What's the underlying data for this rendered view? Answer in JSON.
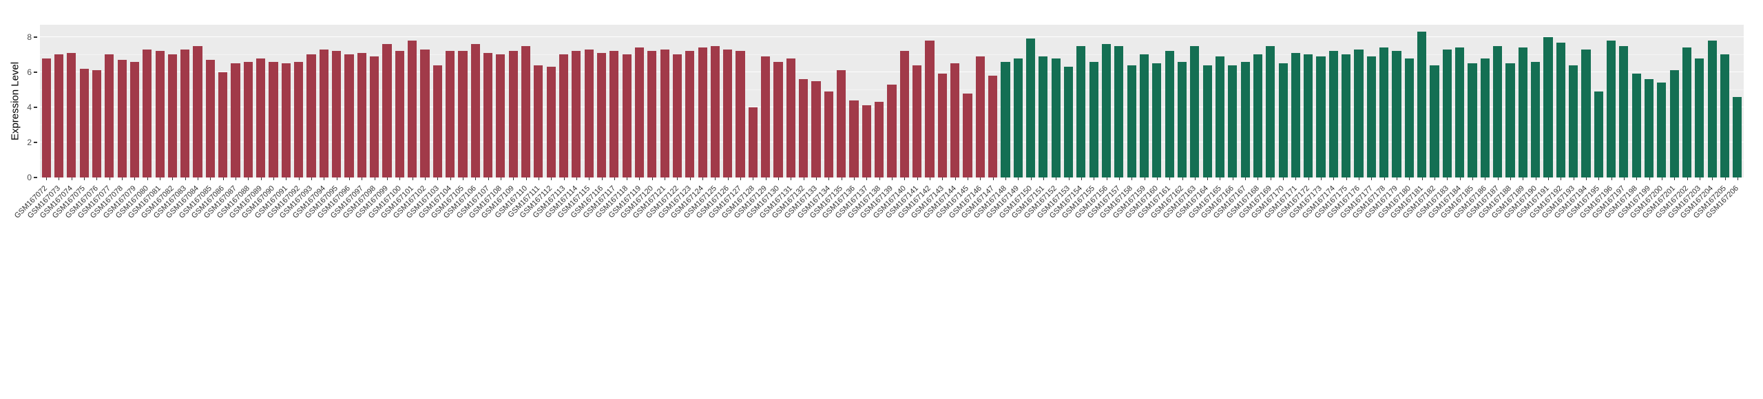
{
  "chart_data": {
    "type": "bar",
    "title": "",
    "xlabel": "",
    "ylabel": "Expression Level",
    "ylim": [
      0,
      8.7
    ],
    "yticks": [
      0,
      2,
      4,
      6,
      8
    ],
    "grid": "white-major-minor",
    "legend_position": "none",
    "panel_background": "#EBEBEB",
    "colors": {
      "group1": "#A13A49",
      "group2": "#146F53"
    },
    "group_split_index": 76,
    "categories": [
      "GSM167072",
      "GSM167073",
      "GSM167074",
      "GSM167075",
      "GSM167076",
      "GSM167077",
      "GSM167078",
      "GSM167079",
      "GSM167080",
      "GSM167081",
      "GSM167082",
      "GSM167083",
      "GSM167084",
      "GSM167085",
      "GSM167086",
      "GSM167087",
      "GSM167088",
      "GSM167089",
      "GSM167090",
      "GSM167091",
      "GSM167092",
      "GSM167093",
      "GSM167094",
      "GSM167095",
      "GSM167096",
      "GSM167097",
      "GSM167098",
      "GSM167099",
      "GSM167100",
      "GSM167101",
      "GSM167102",
      "GSM167103",
      "GSM167104",
      "GSM167105",
      "GSM167106",
      "GSM167107",
      "GSM167108",
      "GSM167109",
      "GSM167110",
      "GSM167111",
      "GSM167112",
      "GSM167113",
      "GSM167114",
      "GSM167115",
      "GSM167116",
      "GSM167117",
      "GSM167118",
      "GSM167119",
      "GSM167120",
      "GSM167121",
      "GSM167122",
      "GSM167123",
      "GSM167124",
      "GSM167125",
      "GSM167126",
      "GSM167127",
      "GSM167128",
      "GSM167129",
      "GSM167130",
      "GSM167131",
      "GSM167132",
      "GSM167133",
      "GSM167134",
      "GSM167135",
      "GSM167136",
      "GSM167137",
      "GSM167138",
      "GSM167139",
      "GSM167140",
      "GSM167141",
      "GSM167142",
      "GSM167143",
      "GSM167144",
      "GSM167145",
      "GSM167146",
      "GSM167147",
      "GSM167148",
      "GSM167149",
      "GSM167150",
      "GSM167151",
      "GSM167152",
      "GSM167153",
      "GSM167154",
      "GSM167155",
      "GSM167156",
      "GSM167157",
      "GSM167158",
      "GSM167159",
      "GSM167160",
      "GSM167161",
      "GSM167162",
      "GSM167163",
      "GSM167164",
      "GSM167165",
      "GSM167166",
      "GSM167167",
      "GSM167168",
      "GSM167169",
      "GSM167170",
      "GSM167171",
      "GSM167172",
      "GSM167173",
      "GSM167174",
      "GSM167175",
      "GSM167176",
      "GSM167177",
      "GSM167178",
      "GSM167179",
      "GSM167180",
      "GSM167181",
      "GSM167182",
      "GSM167183",
      "GSM167184",
      "GSM167185",
      "GSM167186",
      "GSM167187",
      "GSM167188",
      "GSM167189",
      "GSM167190",
      "GSM167191",
      "GSM167192",
      "GSM167193",
      "GSM167194",
      "GSM167195",
      "GSM167196",
      "GSM167197",
      "GSM167198",
      "GSM167199",
      "GSM167200",
      "GSM167201",
      "GSM167202",
      "GSM167203",
      "GSM167204",
      "GSM167205",
      "GSM167206"
    ],
    "values": [
      6.8,
      7.0,
      7.1,
      6.2,
      6.1,
      7.0,
      6.7,
      6.6,
      7.3,
      7.2,
      7.0,
      7.3,
      7.5,
      6.7,
      6.0,
      6.5,
      6.6,
      6.8,
      6.6,
      6.5,
      6.6,
      7.0,
      7.3,
      7.2,
      7.0,
      7.1,
      6.9,
      7.6,
      7.2,
      7.8,
      7.3,
      6.4,
      7.2,
      7.2,
      7.6,
      7.1,
      7.0,
      7.2,
      7.5,
      6.4,
      6.3,
      7.0,
      7.2,
      7.3,
      7.1,
      7.2,
      7.0,
      7.4,
      7.2,
      7.3,
      7.0,
      7.2,
      7.4,
      7.5,
      7.3,
      7.2,
      4.0,
      6.9,
      6.6,
      6.8,
      5.6,
      5.5,
      4.9,
      6.1,
      4.4,
      4.1,
      4.3,
      5.3,
      7.2,
      6.4,
      7.8,
      5.9,
      6.5,
      4.8,
      6.9,
      5.8,
      6.6,
      6.8,
      7.9,
      6.9,
      6.8,
      6.3,
      7.5,
      6.6,
      7.6,
      7.5,
      6.4,
      7.0,
      6.5,
      7.2,
      6.6,
      7.5,
      6.4,
      6.9,
      6.4,
      6.6,
      7.0,
      7.5,
      6.5,
      7.1,
      7.0,
      6.9,
      7.2,
      7.0,
      7.3,
      6.9,
      7.4,
      7.2,
      6.8,
      8.3,
      6.4,
      7.3,
      7.4,
      6.5,
      6.8,
      7.5,
      6.5,
      7.4,
      6.6,
      8.0,
      7.7,
      6.4,
      7.3,
      4.9,
      7.8,
      7.5,
      5.9,
      5.6,
      5.4,
      6.1,
      7.4,
      6.8,
      7.8,
      7.0,
      4.6
    ]
  }
}
